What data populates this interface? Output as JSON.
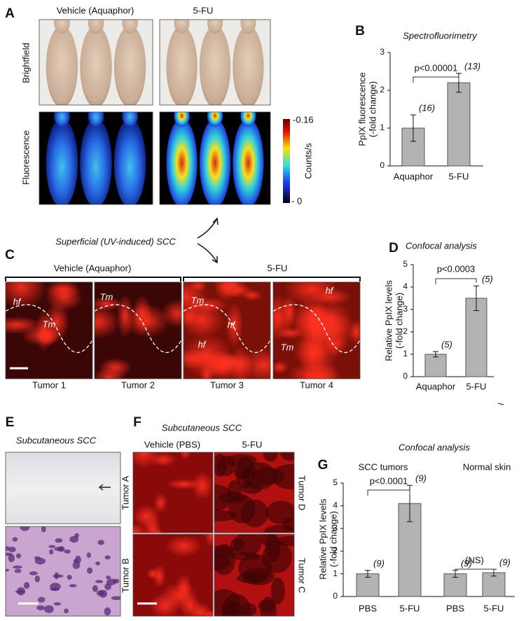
{
  "panel_A": {
    "label": "A",
    "groups": [
      "Vehicle (Aquaphor)",
      "5-FU"
    ],
    "rows": [
      "Brightfield",
      "Fluorescence"
    ],
    "colorbar_labels": [
      "-0.16",
      "Counts/s",
      "- 0"
    ]
  },
  "panel_C": {
    "label": "C",
    "title": "Superficial (UV-induced) SCC",
    "groups": [
      "Vehicle (Aquaphor)",
      "5-FU"
    ],
    "tumors": [
      "Tumor 1",
      "Tumor 2",
      "Tumor 3",
      "Tumor 4"
    ],
    "tissue_labels": [
      "hf",
      "Tm",
      "Tm",
      "Tm",
      "hf",
      "hf",
      "hf",
      "Tm"
    ]
  },
  "panel_E": {
    "label": "E",
    "title": "Subcutaneous SCC"
  },
  "panel_F": {
    "label": "F",
    "title": "Subcutaneous SCC",
    "groups": [
      "Vehicle (PBS)",
      "5-FU"
    ],
    "tumors": [
      "Tumor A",
      "Tumor B",
      "Tumor D",
      "Tumor C"
    ]
  },
  "chart_data": [
    {
      "type": "bar",
      "panel": "B",
      "title": "Spectrofluorimetry",
      "ylabel": [
        "PpIX fluorescence",
        "(-fold change)"
      ],
      "categories": [
        "Aquaphor",
        "5-FU"
      ],
      "values": [
        1,
        2.2
      ],
      "errors": [
        0.35,
        0.25
      ],
      "n_labels": [
        "(16)",
        "(13)"
      ],
      "p_labels": [
        "p<0.00001"
      ],
      "color": "#b3b3b3",
      "ylim": [
        0,
        3
      ],
      "yticks": [
        0,
        1,
        2,
        3
      ]
    },
    {
      "type": "bar",
      "panel": "D",
      "title": "Confocal analysis",
      "ylabel": [
        "Relative PpIX levels",
        "(-fold change)"
      ],
      "categories": [
        "Aquaphor",
        "5-FU"
      ],
      "values": [
        1,
        3.5
      ],
      "errors": [
        0.12,
        0.55
      ],
      "n_labels": [
        "(5)",
        "(5)"
      ],
      "p_labels": [
        "p<0.0003"
      ],
      "color": "#b3b3b3",
      "ylim": [
        0,
        5
      ],
      "yticks": [
        0,
        1,
        2,
        3,
        4,
        5
      ]
    },
    {
      "type": "bar",
      "panel": "G",
      "title": "Confocal analysis",
      "ylabel": [
        "Relative PpIX levels",
        "(-fold change)"
      ],
      "group_labels": [
        "SCC tumors",
        "Normal skin"
      ],
      "categories": [
        "PBS",
        "5-FU",
        "PBS",
        "5-FU"
      ],
      "values": [
        1,
        4.1,
        1,
        1.05
      ],
      "errors": [
        0.15,
        0.8,
        0.15,
        0.15
      ],
      "n_labels": [
        "(9)",
        "(9)",
        "(9)",
        "(9)"
      ],
      "p_labels": [
        "p<0.0001",
        "(NS)"
      ],
      "color": "#b3b3b3",
      "ylim": [
        0,
        5
      ],
      "yticks": [
        0,
        1,
        2,
        3,
        4,
        5
      ]
    }
  ]
}
